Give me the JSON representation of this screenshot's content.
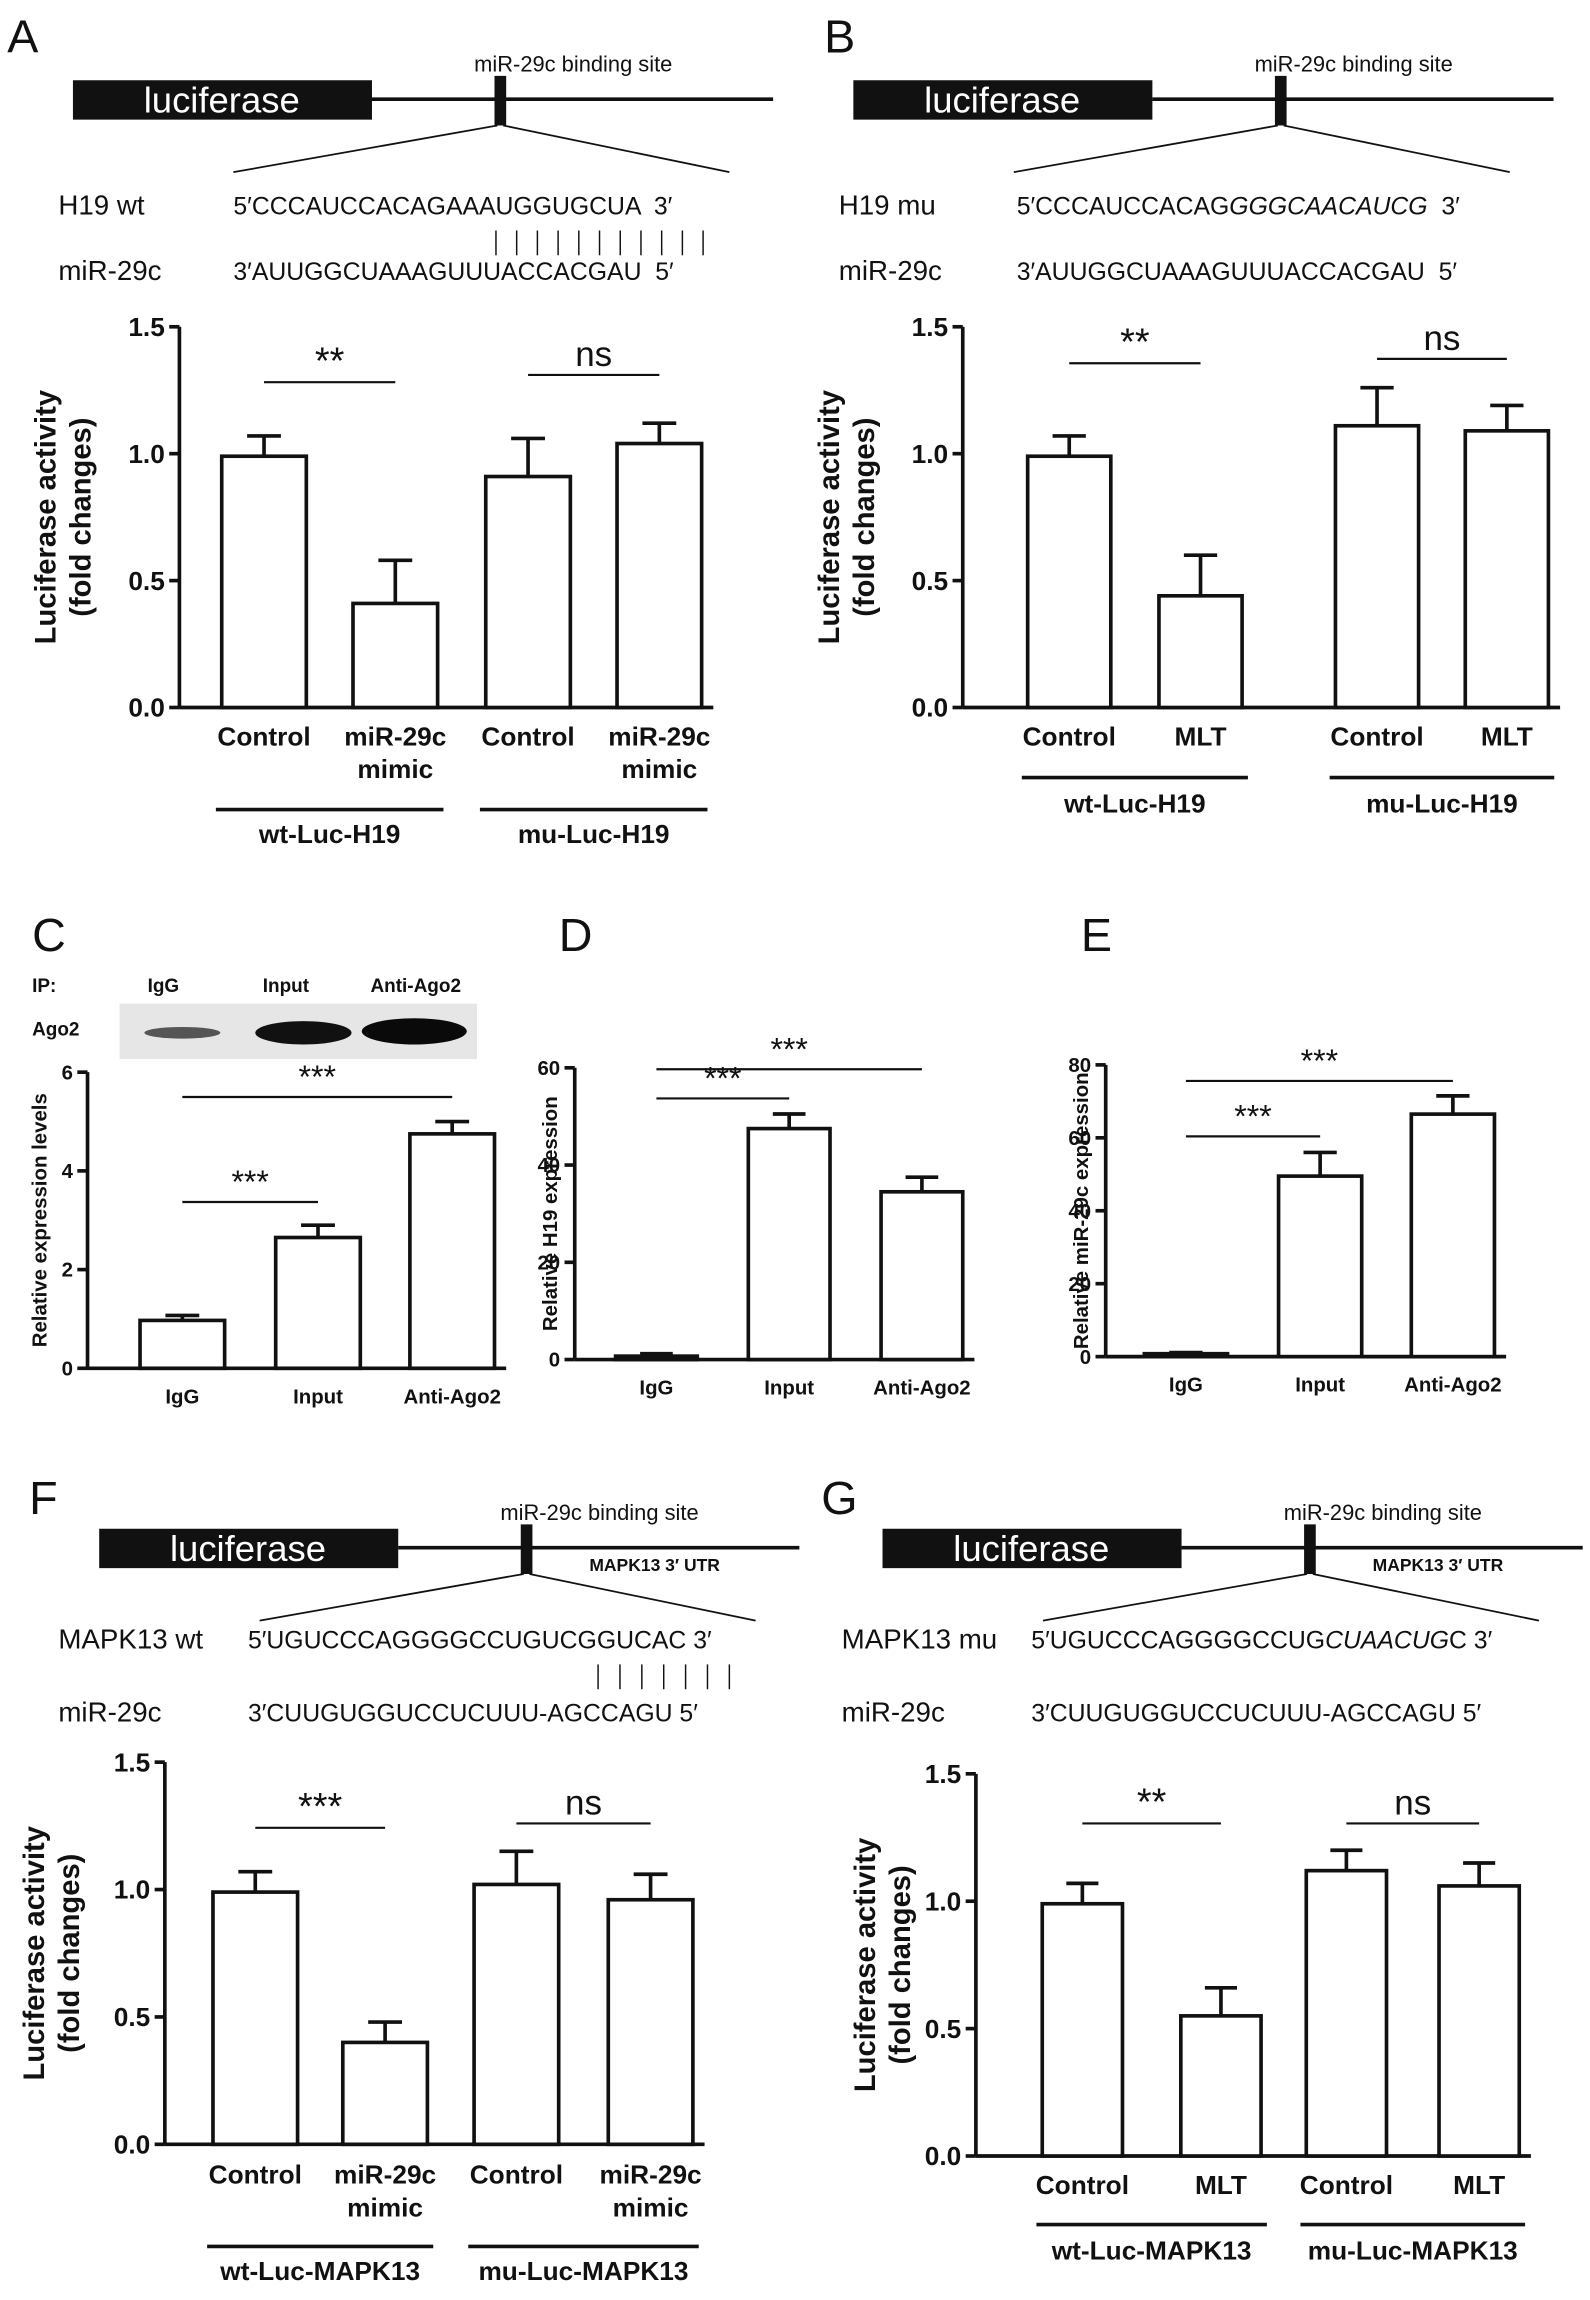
{
  "panel_labels": [
    "A",
    "B",
    "C",
    "D",
    "E",
    "F",
    "G"
  ],
  "diagrams": [
    {
      "box": "luciferase",
      "site": "miR-29c binding site",
      "rows": [
        {
          "label": "H19 wt",
          "seq": [
            {
              "text": "5′CCCAUCCACAGAAAUGGUGCUA  3′"
            }
          ]
        },
        {
          "label": "miR-29c",
          "seq": [
            {
              "text": "3′AUUGGCUAAAGUUUACCACGAU  5′"
            }
          ]
        }
      ]
    },
    {
      "box": "luciferase",
      "site": "miR-29c binding site",
      "rows": [
        {
          "label": "H19 mu",
          "seq": [
            {
              "text": "5′CCCAUCCACAG"
            },
            {
              "text": "GGGCAACAUCG",
              "italic": true
            },
            {
              "text": "  3′"
            }
          ]
        },
        {
          "label": "miR-29c",
          "seq": [
            {
              "text": "3′AUUGGCUAAAGUUUACCACGAU  5′"
            }
          ]
        }
      ]
    },
    {
      "box": "luciferase",
      "site": "miR-29c binding site",
      "utr": "MAPK13 3′ UTR",
      "rows": [
        {
          "label": "MAPK13 wt",
          "seq": [
            {
              "text": "5′UGUCCCAGGGGCCUGUCGGUCAC 3′"
            }
          ]
        },
        {
          "label": "miR-29c",
          "seq": [
            {
              "text": "3′CUUGUGGUCCUCUUU-AGCCAGU 5′"
            }
          ]
        }
      ]
    },
    {
      "box": "luciferase",
      "site": "miR-29c binding site",
      "utr": "MAPK13 3′ UTR",
      "rows": [
        {
          "label": "MAPK13 mu",
          "seq": [
            {
              "text": "5′UGUCCCAGGGGCCUG"
            },
            {
              "text": "CUAACUG",
              "italic": true
            },
            {
              "text": "C 3′"
            }
          ]
        },
        {
          "label": "miR-29c",
          "seq": [
            {
              "text": "3′CUUGUGGUCCUCUUU-AGCCAGU 5′"
            }
          ]
        }
      ]
    }
  ],
  "western_blot": {
    "ip": "IP:",
    "lanes": [
      "IgG",
      "Input",
      "Anti-Ago2"
    ],
    "protein": "Ago2"
  },
  "chart_data": [
    {
      "type": "bar",
      "ylabel": [
        "Luciferase activity",
        "(fold changes)"
      ],
      "categories": [
        [
          "Control"
        ],
        [
          "miR-29c",
          "mimic"
        ],
        [
          "Control"
        ],
        [
          "miR-29c",
          "mimic"
        ]
      ],
      "values": [
        0.99,
        0.41,
        0.91,
        1.04
      ],
      "errors": [
        0.08,
        0.17,
        0.15,
        0.08
      ],
      "ylim": [
        0,
        1.5
      ],
      "yticks": [
        {
          "value": 0,
          "label": "0.0"
        },
        {
          "value": 0.5,
          "label": "0.5"
        },
        {
          "value": 1,
          "label": "1.0"
        },
        {
          "value": 1.5,
          "label": "1.5"
        }
      ],
      "group_labels": [
        "wt-Luc-H19",
        "mu-Luc-H19"
      ],
      "annotations": [
        {
          "text": "**",
          "from": 0,
          "to": 1
        },
        {
          "text": "ns",
          "from": 2,
          "to": 3
        }
      ],
      "color": "#ffffff"
    },
    {
      "type": "bar",
      "ylabel": [
        "Luciferase activity",
        "(fold changes)"
      ],
      "categories": [
        [
          "Control"
        ],
        [
          "MLT"
        ],
        [
          "Control"
        ],
        [
          "MLT"
        ]
      ],
      "values": [
        0.99,
        0.44,
        1.11,
        1.09
      ],
      "errors": [
        0.08,
        0.16,
        0.15,
        0.1
      ],
      "ylim": [
        0,
        1.5
      ],
      "yticks": [
        {
          "value": 0,
          "label": "0.0"
        },
        {
          "value": 0.5,
          "label": "0.5"
        },
        {
          "value": 1,
          "label": "1.0"
        },
        {
          "value": 1.5,
          "label": "1.5"
        }
      ],
      "group_labels": [
        "wt-Luc-H19",
        "mu-Luc-H19"
      ],
      "annotations": [
        {
          "text": "**",
          "from": 0,
          "to": 1
        },
        {
          "text": "ns",
          "from": 2,
          "to": 3
        }
      ],
      "color": "#ffffff"
    },
    {
      "type": "bar",
      "ylabel": [
        "Relative expression levels"
      ],
      "categories": [
        [
          "IgG"
        ],
        [
          "Input"
        ],
        [
          "Anti-Ago2"
        ]
      ],
      "values": [
        0.97,
        2.65,
        4.75
      ],
      "errors": [
        0.1,
        0.25,
        0.25
      ],
      "ylim": [
        0,
        6
      ],
      "yticks": [
        0,
        2,
        4,
        6
      ],
      "annotations": [
        {
          "text": "***",
          "from": 0,
          "to": 1
        },
        {
          "text": "***",
          "from": 0,
          "to": 2
        }
      ],
      "color": "#ffffff"
    },
    {
      "type": "bar",
      "ylabel": [
        "Relative H19 expression"
      ],
      "categories": [
        [
          "IgG"
        ],
        [
          "Input"
        ],
        [
          "Anti-Ago2"
        ]
      ],
      "values": [
        0.7,
        47.5,
        34.5
      ],
      "errors": [
        0.5,
        3,
        3
      ],
      "ylim": [
        0,
        60
      ],
      "yticks": [
        0,
        20,
        40,
        60
      ],
      "annotations": [
        {
          "text": "***",
          "from": 0,
          "to": 1
        },
        {
          "text": "***",
          "from": 0,
          "to": 2
        }
      ],
      "color": "#ffffff"
    },
    {
      "type": "bar",
      "ylabel": [
        "Relative miR-29c expression"
      ],
      "categories": [
        [
          "IgG"
        ],
        [
          "Input"
        ],
        [
          "Anti-Ago2"
        ]
      ],
      "values": [
        0.8,
        49.5,
        66.5
      ],
      "errors": [
        0.3,
        6.5,
        5
      ],
      "ylim": [
        0,
        80
      ],
      "yticks": [
        0,
        20,
        40,
        60,
        80
      ],
      "annotations": [
        {
          "text": "***",
          "from": 0,
          "to": 1
        },
        {
          "text": "***",
          "from": 0,
          "to": 2
        }
      ],
      "color": "#ffffff"
    },
    {
      "type": "bar",
      "ylabel": [
        "Luciferase activity",
        "(fold changes)"
      ],
      "categories": [
        [
          "Control"
        ],
        [
          "miR-29c",
          "mimic"
        ],
        [
          "Control"
        ],
        [
          "miR-29c",
          "mimic"
        ]
      ],
      "values": [
        0.99,
        0.4,
        1.02,
        0.96
      ],
      "errors": [
        0.08,
        0.08,
        0.13,
        0.1
      ],
      "ylim": [
        0,
        1.5
      ],
      "yticks": [
        {
          "value": 0,
          "label": "0.0"
        },
        {
          "value": 0.5,
          "label": "0.5"
        },
        {
          "value": 1,
          "label": "1.0"
        },
        {
          "value": 1.5,
          "label": "1.5"
        }
      ],
      "group_labels": [
        "wt-Luc-MAPK13",
        "mu-Luc-MAPK13"
      ],
      "annotations": [
        {
          "text": "***",
          "from": 0,
          "to": 1
        },
        {
          "text": "ns",
          "from": 2,
          "to": 3
        }
      ],
      "color": "#ffffff"
    },
    {
      "type": "bar",
      "ylabel": [
        "Luciferase activity",
        "(fold changes)"
      ],
      "categories": [
        [
          "Control"
        ],
        [
          "MLT"
        ],
        [
          "Control"
        ],
        [
          "MLT"
        ]
      ],
      "values": [
        0.99,
        0.55,
        1.12,
        1.06
      ],
      "errors": [
        0.08,
        0.11,
        0.08,
        0.09
      ],
      "ylim": [
        0,
        1.5
      ],
      "yticks": [
        {
          "value": 0,
          "label": "0.0"
        },
        {
          "value": 0.5,
          "label": "0.5"
        },
        {
          "value": 1,
          "label": "1.0"
        },
        {
          "value": 1.5,
          "label": "1.5"
        }
      ],
      "group_labels": [
        "wt-Luc-MAPK13",
        "mu-Luc-MAPK13"
      ],
      "annotations": [
        {
          "text": "**",
          "from": 0,
          "to": 1
        },
        {
          "text": "ns",
          "from": 2,
          "to": 3
        }
      ],
      "color": "#ffffff"
    }
  ]
}
